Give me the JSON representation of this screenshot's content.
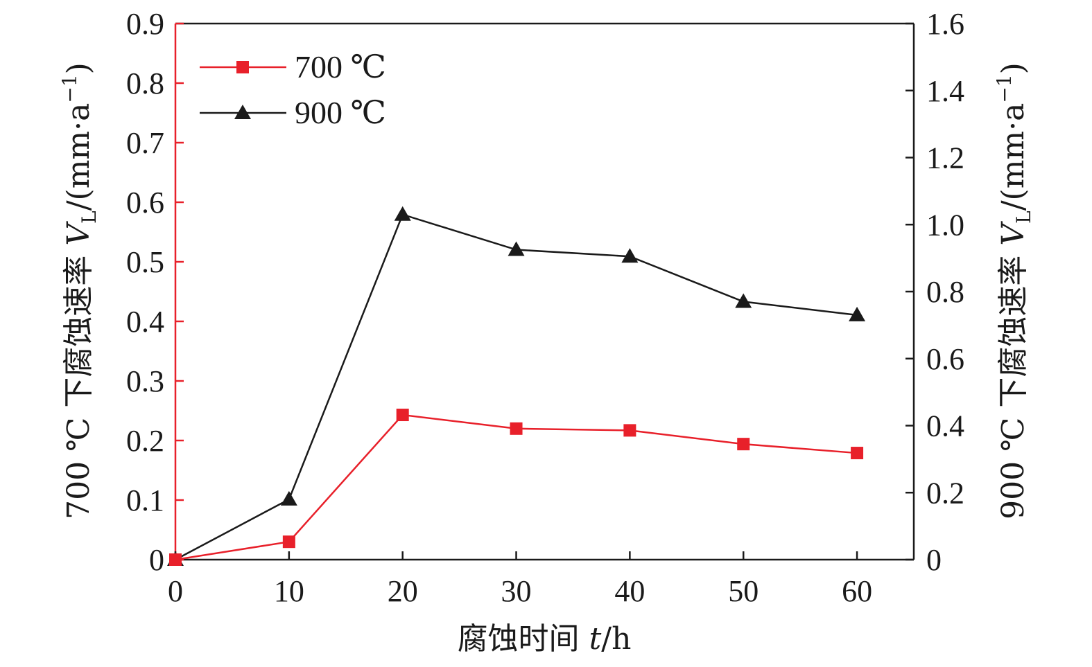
{
  "chart_data": {
    "type": "line",
    "xlabel": {
      "main": "腐蚀时间 ",
      "var": "t",
      "unit": "/h"
    },
    "ylabel_left": {
      "prefix": "700 ℃ 下腐蚀速率 ",
      "var": "V",
      "sub": "L",
      "unit": "/(mm·a",
      "sup": "−1",
      "close": ")"
    },
    "ylabel_right": {
      "prefix": "900 ℃ 下腐蚀速率 ",
      "var": "V",
      "sub": "L",
      "unit": "/(mm·a",
      "sup": "−1",
      "close": ")"
    },
    "x_ticks": [
      0,
      10,
      20,
      30,
      40,
      50,
      60
    ],
    "x_tick_labels": [
      "0",
      "10",
      "20",
      "30",
      "40",
      "50",
      "60"
    ],
    "xlim": [
      0,
      65
    ],
    "y_left_ticks": [
      0,
      0.1,
      0.2,
      0.3,
      0.4,
      0.5,
      0.6,
      0.7,
      0.8,
      0.9
    ],
    "y_left_tick_labels": [
      "0",
      "0.1",
      "0.2",
      "0.3",
      "0.4",
      "0.5",
      "0.6",
      "0.7",
      "0.8",
      "0.9"
    ],
    "ylim_left": [
      0,
      0.9
    ],
    "y_right_ticks": [
      0,
      0.2,
      0.4,
      0.6,
      0.8,
      1.0,
      1.2,
      1.4,
      1.6
    ],
    "y_right_tick_labels": [
      "0",
      "0.2",
      "0.4",
      "0.6",
      "0.8",
      "1.0",
      "1.2",
      "1.4",
      "1.6"
    ],
    "ylim_right": [
      0,
      1.6
    ],
    "grid": false,
    "legend_position": "top-left",
    "series": [
      {
        "name": "700 ℃",
        "axis": "left",
        "color": "#e8202a",
        "marker": "square",
        "x": [
          0,
          10,
          20,
          30,
          40,
          50,
          60
        ],
        "values": [
          0,
          0.03,
          0.243,
          0.22,
          0.217,
          0.194,
          0.179
        ]
      },
      {
        "name": "900 ℃",
        "axis": "right",
        "color": "#1a1a1a",
        "marker": "triangle",
        "x": [
          0,
          10,
          20,
          30,
          40,
          50,
          60
        ],
        "values": [
          0,
          0.18,
          1.03,
          0.925,
          0.905,
          0.77,
          0.73
        ]
      }
    ],
    "left_axis_color": "#e8202a",
    "frame_color": "#1a1a1a"
  }
}
